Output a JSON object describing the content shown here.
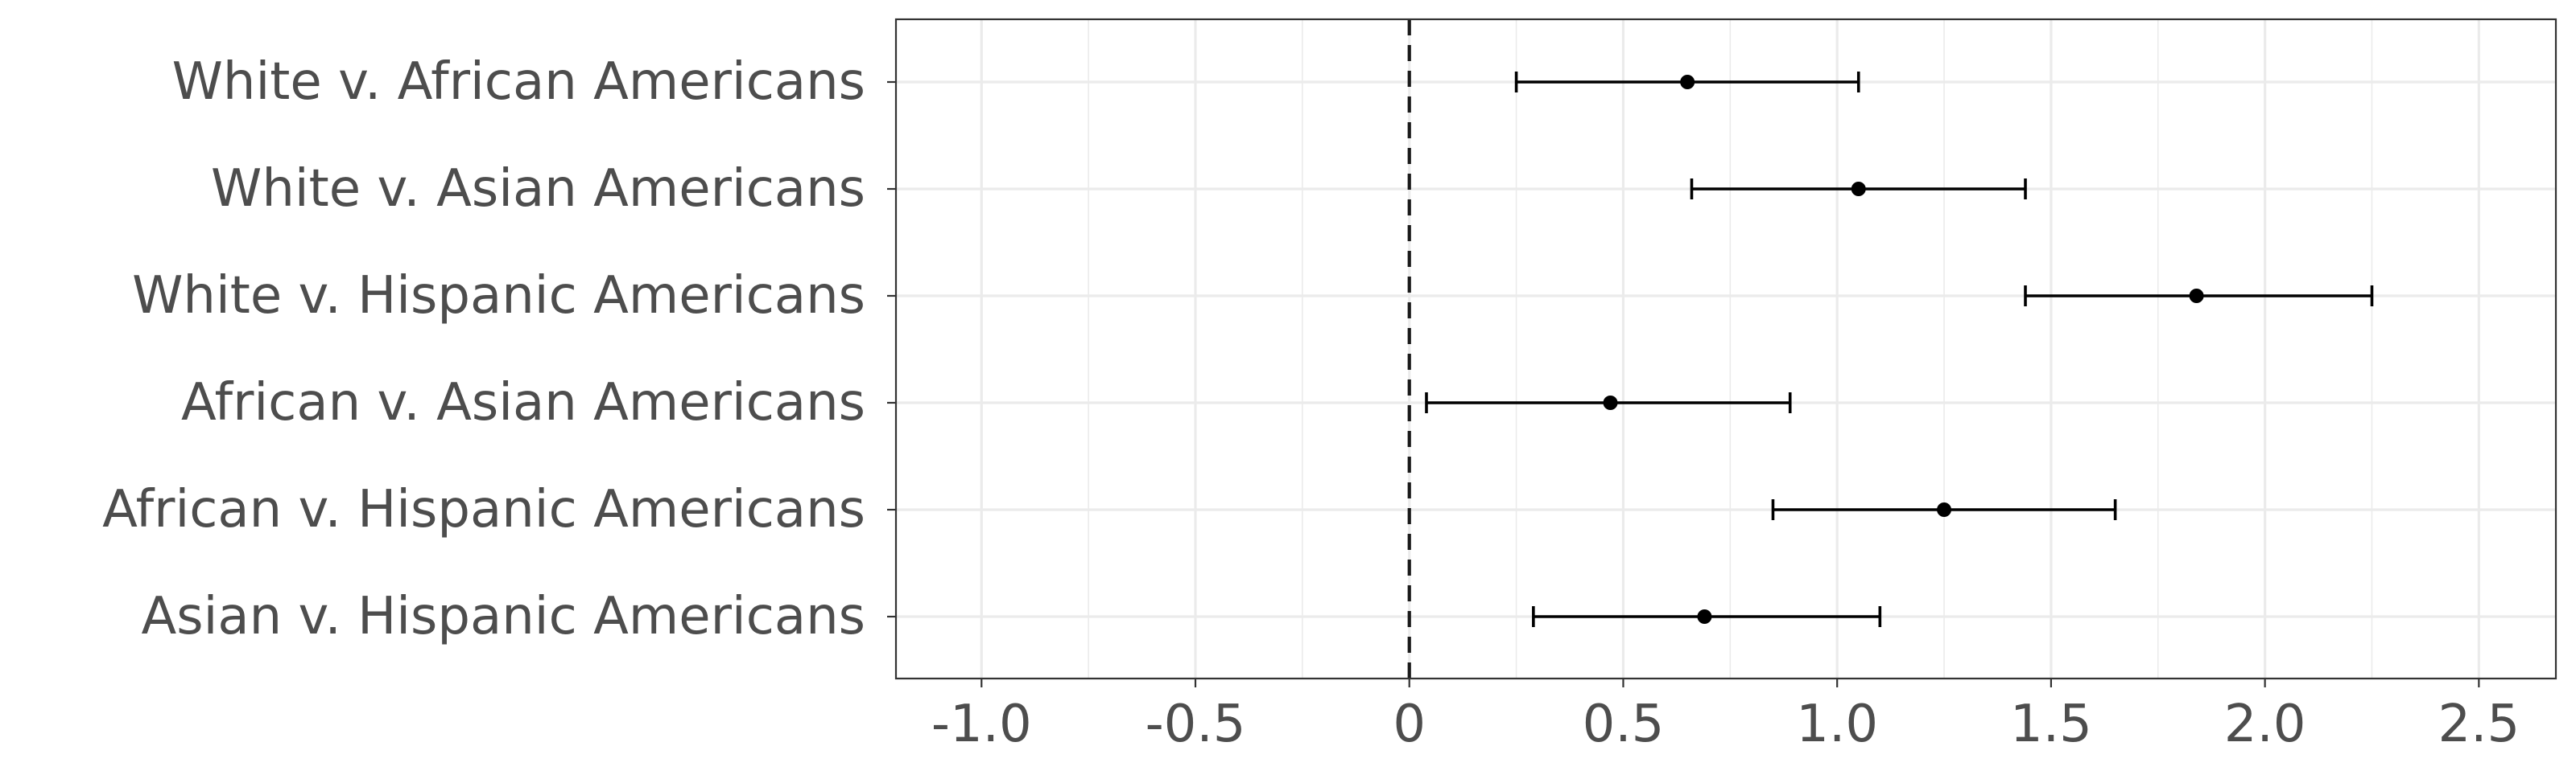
{
  "chart_data": {
    "type": "scatter",
    "subtype": "forest-plot (point estimate with error bars)",
    "title": "",
    "xlabel": "",
    "ylabel": "",
    "xlim": [
      -1.2,
      2.68
    ],
    "x_ticks": [
      -1.0,
      -0.5,
      0,
      0.5,
      1.0,
      1.5,
      2.0,
      2.5
    ],
    "x_tick_labels": [
      "-1.0",
      "-0.5",
      "0",
      "0.5",
      "1.0",
      "1.5",
      "2.0",
      "2.5"
    ],
    "reference_line": {
      "x": 0,
      "style": "dashed",
      "color": "#1a1a1a"
    },
    "grid": true,
    "legend": "none",
    "colors": {
      "point": "#000000",
      "errorbar": "#000000",
      "grid": "#ebebeb",
      "panel_border": "#333333",
      "tick_label": "#4d4d4d"
    },
    "categories": [
      "White v. African Americans",
      "White v. Asian Americans",
      "White v. Hispanic Americans",
      "African v. Asian Americans",
      "African v. Hispanic Americans",
      "Asian v. Hispanic Americans"
    ],
    "estimates": [
      0.65,
      1.05,
      1.84,
      0.47,
      1.25,
      0.69
    ],
    "lower": [
      0.25,
      0.66,
      1.44,
      0.04,
      0.85,
      0.29
    ],
    "upper": [
      1.05,
      1.44,
      2.25,
      0.89,
      1.65,
      1.1
    ]
  }
}
